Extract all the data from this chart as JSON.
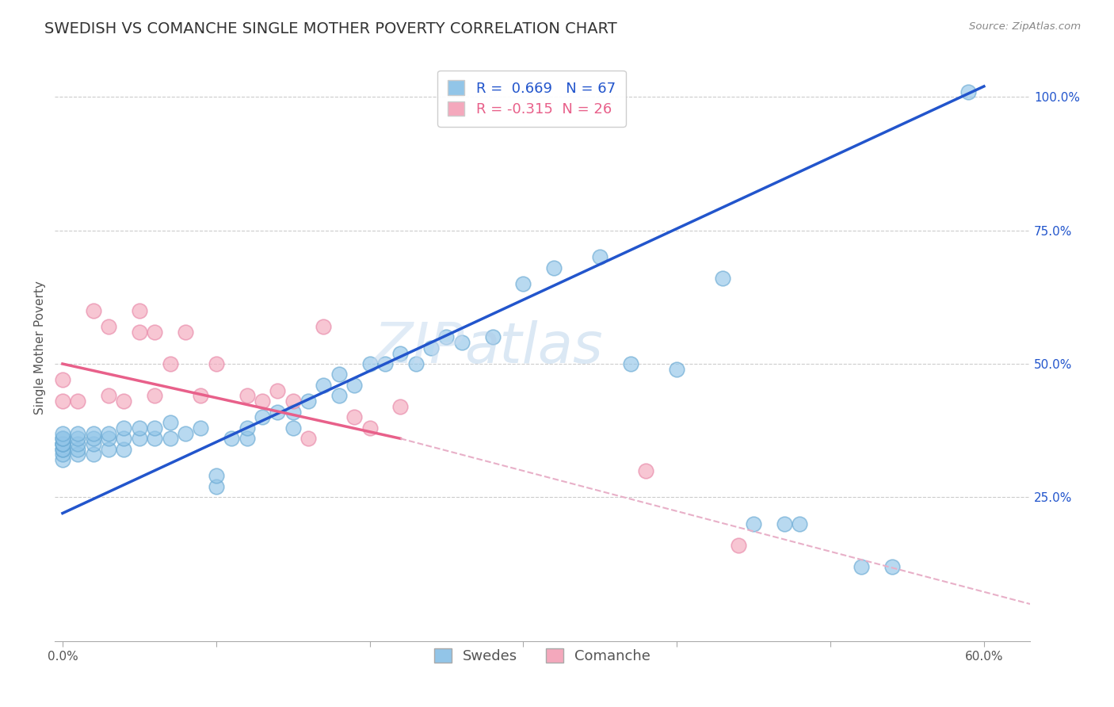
{
  "title": "SWEDISH VS COMANCHE SINGLE MOTHER POVERTY CORRELATION CHART",
  "source": "Source: ZipAtlas.com",
  "ylabel": "Single Mother Poverty",
  "watermark_zip": "ZIP",
  "watermark_atlas": "atlas",
  "xlim": [
    -0.005,
    0.63
  ],
  "ylim": [
    -0.02,
    1.08
  ],
  "xticks": [
    0.0,
    0.1,
    0.2,
    0.3,
    0.4,
    0.5,
    0.6
  ],
  "xticklabels": [
    "0.0%",
    "",
    "",
    "",
    "",
    "",
    "60.0%"
  ],
  "yticks_right": [
    0.25,
    0.5,
    0.75,
    1.0
  ],
  "ytick_labels_right": [
    "25.0%",
    "50.0%",
    "75.0%",
    "100.0%"
  ],
  "swedes_color": "#92C5E8",
  "comanche_color": "#F4A8BC",
  "swedes_edge_color": "#6AAAD4",
  "comanche_edge_color": "#E888A8",
  "swedes_line_color": "#2255CC",
  "comanche_line_solid_color": "#E8608A",
  "comanche_line_dashed_color": "#E8B0C8",
  "R_swedes": 0.669,
  "N_swedes": 67,
  "R_comanche": -0.315,
  "N_comanche": 26,
  "background_color": "#FFFFFF",
  "grid_color": "#CCCCCC",
  "title_fontsize": 14,
  "axis_label_fontsize": 11,
  "tick_fontsize": 11,
  "legend_fontsize": 13,
  "sw_line_x0": 0.0,
  "sw_line_y0": 0.22,
  "sw_line_x1": 0.6,
  "sw_line_y1": 1.02,
  "co_line_solid_x0": 0.0,
  "co_line_solid_y0": 0.5,
  "co_line_solid_x1": 0.22,
  "co_line_solid_y1": 0.36,
  "co_line_dashed_x0": 0.22,
  "co_line_dashed_y0": 0.36,
  "co_line_dashed_x1": 0.63,
  "co_line_dashed_y1": 0.05,
  "swedes_x": [
    0.0,
    0.0,
    0.0,
    0.0,
    0.0,
    0.0,
    0.0,
    0.0,
    0.0,
    0.0,
    0.01,
    0.01,
    0.01,
    0.01,
    0.01,
    0.02,
    0.02,
    0.02,
    0.02,
    0.03,
    0.03,
    0.03,
    0.04,
    0.04,
    0.04,
    0.05,
    0.05,
    0.06,
    0.06,
    0.07,
    0.07,
    0.08,
    0.09,
    0.1,
    0.1,
    0.11,
    0.12,
    0.12,
    0.13,
    0.14,
    0.15,
    0.15,
    0.16,
    0.17,
    0.18,
    0.18,
    0.19,
    0.2,
    0.21,
    0.22,
    0.23,
    0.24,
    0.25,
    0.26,
    0.28,
    0.3,
    0.32,
    0.35,
    0.37,
    0.4,
    0.43,
    0.45,
    0.47,
    0.48,
    0.52,
    0.54,
    0.59
  ],
  "swedes_y": [
    0.32,
    0.33,
    0.34,
    0.34,
    0.35,
    0.35,
    0.35,
    0.36,
    0.36,
    0.37,
    0.33,
    0.34,
    0.35,
    0.36,
    0.37,
    0.33,
    0.35,
    0.36,
    0.37,
    0.34,
    0.36,
    0.37,
    0.34,
    0.36,
    0.38,
    0.36,
    0.38,
    0.36,
    0.38,
    0.36,
    0.39,
    0.37,
    0.38,
    0.27,
    0.29,
    0.36,
    0.36,
    0.38,
    0.4,
    0.41,
    0.38,
    0.41,
    0.43,
    0.46,
    0.44,
    0.48,
    0.46,
    0.5,
    0.5,
    0.52,
    0.5,
    0.53,
    0.55,
    0.54,
    0.55,
    0.65,
    0.68,
    0.7,
    0.5,
    0.49,
    0.66,
    0.2,
    0.2,
    0.2,
    0.12,
    0.12,
    1.01
  ],
  "comanche_x": [
    0.0,
    0.0,
    0.01,
    0.02,
    0.03,
    0.03,
    0.04,
    0.05,
    0.05,
    0.06,
    0.06,
    0.07,
    0.08,
    0.09,
    0.1,
    0.12,
    0.13,
    0.14,
    0.15,
    0.16,
    0.17,
    0.19,
    0.2,
    0.22,
    0.38,
    0.44
  ],
  "comanche_y": [
    0.43,
    0.47,
    0.43,
    0.6,
    0.44,
    0.57,
    0.43,
    0.56,
    0.6,
    0.44,
    0.56,
    0.5,
    0.56,
    0.44,
    0.5,
    0.44,
    0.43,
    0.45,
    0.43,
    0.36,
    0.57,
    0.4,
    0.38,
    0.42,
    0.3,
    0.16
  ]
}
